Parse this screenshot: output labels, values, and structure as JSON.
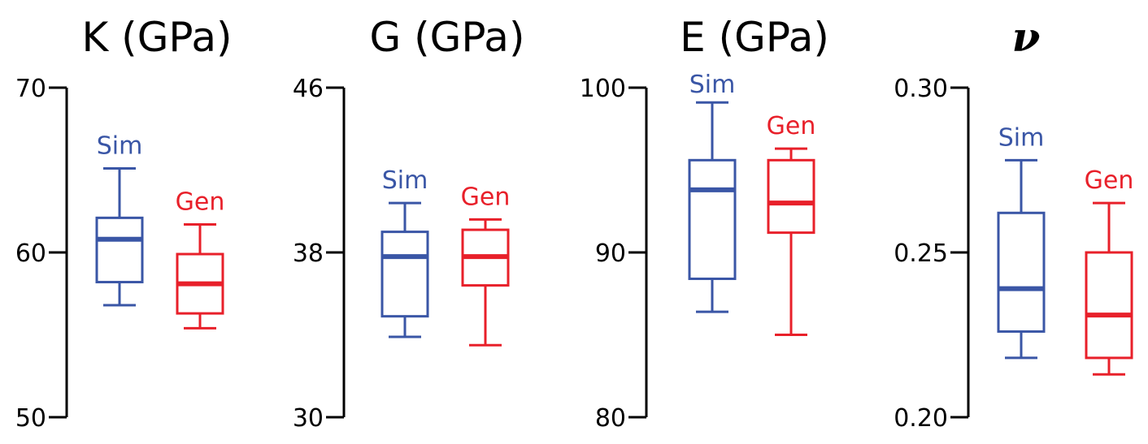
{
  "colors": {
    "Sim": "#3a56a6",
    "Gen": "#e8202a",
    "axis": "#000000"
  },
  "chart_data": [
    {
      "type": "box",
      "title": "K (GPa)",
      "ylim": [
        50,
        70
      ],
      "yticks": [
        "50",
        "60",
        "70"
      ],
      "series": [
        {
          "name": "Sim",
          "min": 56.8,
          "q1": 58.2,
          "median": 60.8,
          "q3": 62.1,
          "max": 65.1
        },
        {
          "name": "Gen",
          "min": 55.4,
          "q1": 56.3,
          "median": 58.1,
          "q3": 59.9,
          "max": 61.7
        }
      ]
    },
    {
      "type": "box",
      "title": "G (GPa)",
      "ylim": [
        30,
        46
      ],
      "yticks": [
        "30",
        "38",
        "46"
      ],
      "series": [
        {
          "name": "Sim",
          "min": 33.9,
          "q1": 34.9,
          "median": 37.8,
          "q3": 39.0,
          "max": 40.4
        },
        {
          "name": "Gen",
          "min": 33.5,
          "q1": 36.4,
          "median": 37.8,
          "q3": 39.1,
          "max": 39.6
        }
      ]
    },
    {
      "type": "box",
      "title": "E (GPa)",
      "ylim": [
        80,
        100
      ],
      "yticks": [
        "80",
        "90",
        "100"
      ],
      "series": [
        {
          "name": "Sim",
          "min": 86.4,
          "q1": 88.4,
          "median": 93.8,
          "q3": 95.6,
          "max": 99.1
        },
        {
          "name": "Gen",
          "min": 85.0,
          "q1": 91.2,
          "median": 93.0,
          "q3": 95.6,
          "max": 96.3
        }
      ]
    },
    {
      "type": "box",
      "title": "ν",
      "ylim": [
        0.2,
        0.3
      ],
      "yticks": [
        "0.20",
        "0.25",
        "0.30"
      ],
      "series": [
        {
          "name": "Sim",
          "min": 0.218,
          "q1": 0.226,
          "median": 0.239,
          "q3": 0.262,
          "max": 0.278
        },
        {
          "name": "Gen",
          "min": 0.213,
          "q1": 0.218,
          "median": 0.231,
          "q3": 0.25,
          "max": 0.265
        }
      ]
    }
  ]
}
